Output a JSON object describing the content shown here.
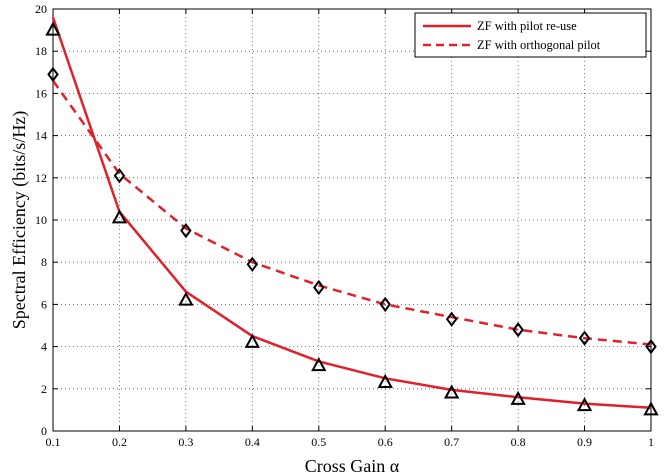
{
  "chart_data": {
    "type": "line",
    "xlabel": "Cross Gain α",
    "ylabel": "Spectral Efficiency (bits/s/Hz)",
    "xlim": [
      0.1,
      1
    ],
    "ylim": [
      0,
      20
    ],
    "xticks": [
      "0.1",
      "0.2",
      "0.3",
      "0.4",
      "0.5",
      "0.6",
      "0.7",
      "0.8",
      "0.9",
      "1"
    ],
    "yticks": [
      "0",
      "2",
      "4",
      "6",
      "8",
      "10",
      "12",
      "14",
      "16",
      "18",
      "20"
    ],
    "grid": true,
    "legend_position": "top-right",
    "series": [
      {
        "name": "ZF with pilot re-use",
        "style": "solid",
        "color": "#e0202a",
        "line": {
          "x": [
            0.1,
            0.2,
            0.3,
            0.4,
            0.5,
            0.6,
            0.7,
            0.8,
            0.9,
            1.0
          ],
          "y": [
            19.6,
            10.4,
            6.6,
            4.5,
            3.3,
            2.5,
            1.95,
            1.6,
            1.3,
            1.1
          ]
        },
        "markers": {
          "symbol": "triangle",
          "x": [
            0.1,
            0.2,
            0.3,
            0.4,
            0.5,
            0.6,
            0.7,
            0.8,
            0.9,
            1.0
          ],
          "y": [
            19.0,
            10.1,
            6.2,
            4.2,
            3.1,
            2.3,
            1.8,
            1.5,
            1.2,
            1.0
          ]
        }
      },
      {
        "name": "ZF with orthogonal pilot",
        "style": "dashed",
        "color": "#e0202a",
        "line": {
          "x": [
            0.1,
            0.2,
            0.3,
            0.4,
            0.5,
            0.6,
            0.7,
            0.8,
            0.9,
            1.0
          ],
          "y": [
            16.6,
            12.2,
            9.6,
            8.0,
            6.9,
            6.0,
            5.4,
            4.8,
            4.4,
            4.1
          ]
        },
        "markers": {
          "symbol": "diamond",
          "x": [
            0.1,
            0.2,
            0.3,
            0.4,
            0.5,
            0.6,
            0.7,
            0.8,
            0.9,
            1.0
          ],
          "y": [
            16.9,
            12.1,
            9.5,
            7.9,
            6.8,
            6.0,
            5.3,
            4.8,
            4.4,
            4.0
          ]
        }
      }
    ]
  }
}
